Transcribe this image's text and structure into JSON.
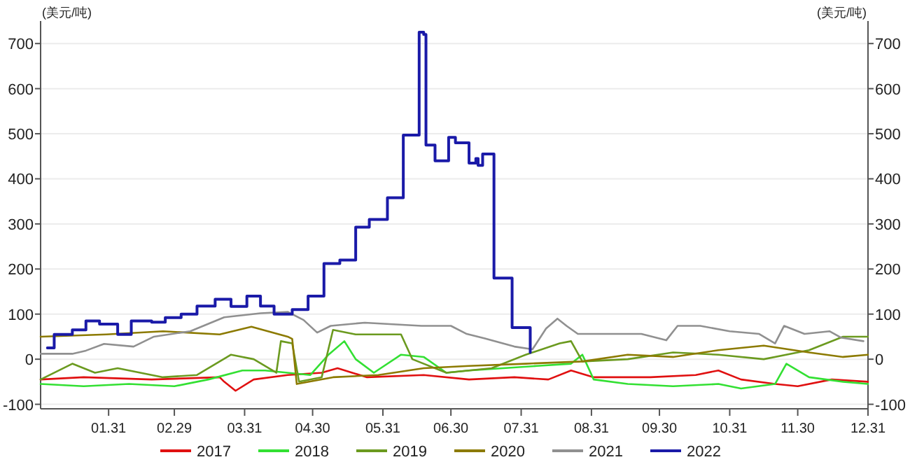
{
  "chart_data": {
    "type": "line",
    "ylabel": "(美元/吨)",
    "y2label": "(美元/吨)",
    "xlim": [
      "--01-01",
      "--12-31"
    ],
    "xticks": [
      {
        "value": "--01-31",
        "label": "01.31"
      },
      {
        "value": "--02-29",
        "label": "02.29"
      },
      {
        "value": "--03-31",
        "label": "03.31"
      },
      {
        "value": "--04-30",
        "label": "04.30"
      },
      {
        "value": "--05-31",
        "label": "05.31"
      },
      {
        "value": "--06-30",
        "label": "06.30"
      },
      {
        "value": "--07-31",
        "label": "07.31"
      },
      {
        "value": "--08-31",
        "label": "08.31"
      },
      {
        "value": "--09-30",
        "label": "09.30"
      },
      {
        "value": "--10-31",
        "label": "10.31"
      },
      {
        "value": "--11-30",
        "label": "11.30"
      },
      {
        "value": "--12-31",
        "label": "12.31"
      }
    ],
    "ylim": [
      -110,
      750
    ],
    "yticks": [
      -100,
      0,
      100,
      200,
      300,
      400,
      500,
      600,
      700
    ],
    "y2lim": [
      -110,
      750
    ],
    "y2ticks": [
      -100,
      0,
      100,
      200,
      300,
      400,
      500,
      600,
      700
    ],
    "grid": "y",
    "legend": "bottom",
    "series": [
      {
        "name": "2017",
        "color": "#e01010",
        "x": [
          "--01-01",
          "--01-20",
          "--02-19",
          "--03-20",
          "--03-22",
          "--03-27",
          "--04-04",
          "--04-19",
          "--05-04",
          "--05-11",
          "--05-24",
          "--06-18",
          "--07-08",
          "--07-28",
          "--08-12",
          "--08-22",
          "--09-01",
          "--09-26",
          "--10-16",
          "--10-26",
          "--11-05",
          "--11-20",
          "--11-30",
          "--12-15",
          "--12-31"
        ],
        "values": [
          -45,
          -40,
          -45,
          -40,
          -50,
          -70,
          -45,
          -35,
          -30,
          -20,
          -40,
          -35,
          -45,
          -40,
          -45,
          -25,
          -40,
          -40,
          -35,
          -25,
          -45,
          -55,
          -60,
          -45,
          -50
        ]
      },
      {
        "name": "2018",
        "color": "#33e033",
        "x": [
          "--01-01",
          "--01-20",
          "--02-09",
          "--02-29",
          "--03-15",
          "--03-30",
          "--04-09",
          "--04-19",
          "--04-29",
          "--05-07",
          "--05-14",
          "--05-19",
          "--05-27",
          "--06-08",
          "--06-18",
          "--06-28",
          "--07-08",
          "--07-23",
          "--08-07",
          "--08-22",
          "--08-27",
          "--09-01",
          "--09-16",
          "--10-06",
          "--10-26",
          "--11-05",
          "--11-20",
          "--11-25",
          "--12-05",
          "--12-20",
          "--12-31"
        ],
        "values": [
          -55,
          -60,
          -55,
          -60,
          -45,
          -25,
          -25,
          -30,
          -35,
          10,
          40,
          0,
          -30,
          10,
          5,
          -30,
          -25,
          -20,
          -15,
          -10,
          10,
          -45,
          -55,
          -60,
          -55,
          -65,
          -55,
          -10,
          -40,
          -50,
          -55
        ]
      },
      {
        "name": "2019",
        "color": "#6b9a1f",
        "x": [
          "--01-01",
          "--01-15",
          "--01-25",
          "--02-04",
          "--02-24",
          "--03-10",
          "--03-25",
          "--04-04",
          "--04-14",
          "--04-16",
          "--04-21",
          "--04-24",
          "--05-04",
          "--05-09",
          "--05-19",
          "--06-08",
          "--06-13",
          "--06-28",
          "--07-18",
          "--08-02",
          "--08-17",
          "--08-22",
          "--08-27",
          "--09-16",
          "--10-06",
          "--10-26",
          "--11-15",
          "--12-05",
          "--12-20",
          "--12-31"
        ],
        "values": [
          -45,
          -10,
          -30,
          -20,
          -40,
          -35,
          10,
          0,
          -30,
          40,
          35,
          -50,
          -40,
          65,
          55,
          55,
          0,
          -30,
          -20,
          10,
          35,
          40,
          -5,
          0,
          15,
          10,
          0,
          20,
          50,
          50
        ]
      },
      {
        "name": "2020",
        "color": "#8c7a00",
        "x": [
          "--01-01",
          "--01-30",
          "--02-24",
          "--03-20",
          "--04-03",
          "--04-19",
          "--04-21",
          "--04-23",
          "--05-09",
          "--05-29",
          "--06-18",
          "--07-08",
          "--08-02",
          "--08-27",
          "--09-16",
          "--10-06",
          "--10-26",
          "--11-15",
          "--12-05",
          "--12-20",
          "--12-31"
        ],
        "values": [
          50,
          55,
          62,
          55,
          72,
          50,
          45,
          -55,
          -40,
          -35,
          -20,
          -15,
          -10,
          -5,
          10,
          5,
          20,
          30,
          15,
          5,
          10
        ]
      },
      {
        "name": "2021",
        "color": "#909090",
        "x": [
          "--01-01",
          "--01-15",
          "--01-21",
          "--01-29",
          "--02-11",
          "--02-20",
          "--03-07",
          "--03-22",
          "--04-07",
          "--04-19",
          "--04-26",
          "--05-02",
          "--05-08",
          "--05-23",
          "--06-17",
          "--06-30",
          "--07-07",
          "--07-15",
          "--07-28",
          "--08-05",
          "--08-11",
          "--08-16",
          "--08-20",
          "--08-25",
          "--09-22",
          "--10-03",
          "--10-08",
          "--10-18",
          "--10-31",
          "--11-13",
          "--11-20",
          "--11-24",
          "--12-03",
          "--12-14",
          "--12-19",
          "--12-29"
        ],
        "values": [
          12,
          12,
          19,
          34,
          28,
          50,
          62,
          93,
          102,
          105,
          87,
          59,
          74,
          81,
          74,
          74,
          56,
          46,
          28,
          22,
          68,
          90,
          74,
          56,
          56,
          42,
          74,
          74,
          62,
          56,
          35,
          74,
          56,
          62,
          48,
          40
        ]
      },
      {
        "name": "2022",
        "color": "#1a1aa8",
        "type": "step",
        "x": [
          "--01-04",
          "--01-07",
          "--01-15",
          "--01-21",
          "--01-27",
          "--02-04",
          "--02-10",
          "--02-19",
          "--02-25",
          "--03-03",
          "--03-10",
          "--03-18",
          "--03-25",
          "--04-01",
          "--04-07",
          "--04-13",
          "--04-21",
          "--04-28",
          "--05-05",
          "--05-12",
          "--05-19",
          "--05-25",
          "--06-02",
          "--06-09",
          "--06-16",
          "--06-18",
          "--06-19",
          "--06-23",
          "--06-29",
          "--07-02",
          "--07-08",
          "--07-11",
          "--07-12",
          "--07-14",
          "--07-19",
          "--07-27",
          "--08-03",
          "--08-04"
        ],
        "values": [
          25,
          55,
          65,
          85,
          78,
          55,
          85,
          82,
          92,
          100,
          118,
          133,
          117,
          140,
          118,
          100,
          110,
          140,
          212,
          220,
          293,
          310,
          358,
          497,
          725,
          720,
          475,
          440,
          492,
          480,
          435,
          445,
          430,
          455,
          180,
          70,
          70,
          15
        ]
      }
    ]
  }
}
